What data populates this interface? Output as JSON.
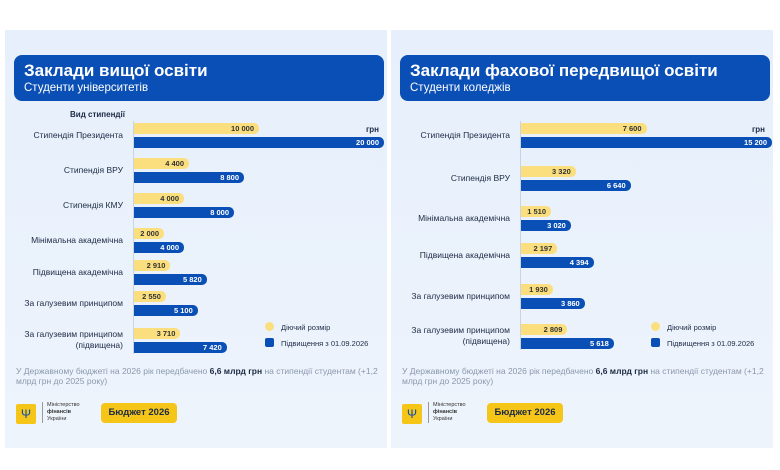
{
  "chart_data": [
    {
      "type": "bar",
      "title": "Заклади вищої освіти",
      "subtitle": "Студенти університетів",
      "category_label": "Вид стипендії",
      "unit": "грн",
      "categories": [
        "Стипендія Президента",
        "Стипендія ВРУ",
        "Стипендія КМУ",
        "Мінімальна академічна",
        "Підвищена академічна",
        "За галузевим принципом",
        "За галузевим принципом (підвищена)"
      ],
      "series": [
        {
          "name": "Діючий розмір",
          "color": "#fbdf7e",
          "values": [
            10000,
            4400,
            4000,
            2000,
            2910,
            2550,
            3710
          ],
          "labels": [
            "10 000",
            "4 400",
            "4 000",
            "2 000",
            "2 910",
            "2 550",
            "3 710"
          ]
        },
        {
          "name": "Підвищення з 01.09.2026",
          "color": "#0a4fb5",
          "values": [
            20000,
            8800,
            8000,
            4000,
            5820,
            5100,
            7420
          ],
          "labels": [
            "20 000",
            "8 800",
            "8 000",
            "4 000",
            "5 820",
            "5 100",
            "7 420"
          ]
        }
      ],
      "note": "У Державному бюджеті на 2026 рік передбачено ",
      "note_bold": "6,6 млрд грн",
      "note_end": " на стипендії студентам (+1,2 млрд грн до 2025 року)"
    },
    {
      "type": "bar",
      "title": "Заклади фахової передвищої освіти",
      "subtitle": "Студенти коледжів",
      "unit": "грн",
      "categories": [
        "Стипендія Президента",
        "Стипендія ВРУ",
        "Мінімальна академічна",
        "Підвищена академічна",
        "За галузевим принципом",
        "За галузевим принципом (підвищена)"
      ],
      "series": [
        {
          "name": "Діючий розмір",
          "color": "#fbdf7e",
          "values": [
            7600,
            3320,
            1510,
            2197,
            1930,
            2809
          ],
          "labels": [
            "7 600",
            "3 320",
            "1 510",
            "2 197",
            "1 930",
            "2 809"
          ]
        },
        {
          "name": "Підвищення з 01.09.2026",
          "color": "#0a4fb5",
          "values": [
            15200,
            6640,
            3020,
            4394,
            3860,
            5618
          ],
          "labels": [
            "15 200",
            "6 640",
            "3 020",
            "4 394",
            "3 860",
            "5 618"
          ]
        }
      ],
      "note": "У Державному бюджеті на 2026 рік передбачено ",
      "note_bold": "6,6 млрд грн",
      "note_end": " на стипендії студентам (+1,2 млрд грн до 2025 року)"
    }
  ],
  "footer": {
    "ministry": [
      "Міністерство",
      "фінансів",
      "України"
    ],
    "budget": "Бюджет 2026"
  }
}
